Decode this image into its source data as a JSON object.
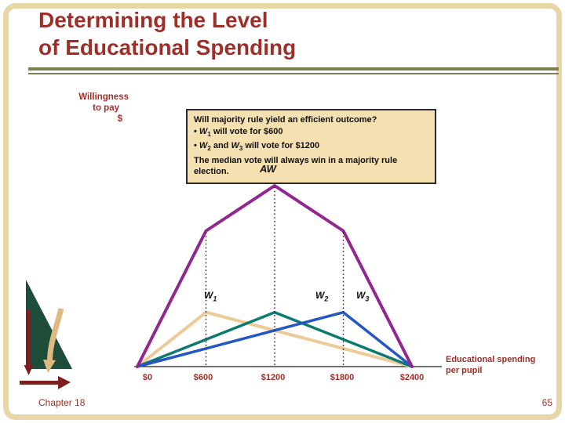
{
  "slide": {
    "title_line1": "Determining the Level",
    "title_line2": "of Educational Spending",
    "footer_left": "Chapter 18",
    "slide_number": "65"
  },
  "ylabel": {
    "line1": "Willingness",
    "line2": "to pay",
    "line3": "$"
  },
  "callout": {
    "title": "Will majority rule yield an efficient outcome?",
    "b1": {
      "pre": "• ",
      "v1": "W",
      "s1": "1",
      "rest": " will vote for $600"
    },
    "b2": {
      "pre": "• ",
      "v1": "W",
      "s1": "2",
      "mid": " and ",
      "v2": "W",
      "s2": "3",
      "rest": " will vote for $1200"
    },
    "footer": "The median vote will always win in a majority rule election."
  },
  "chart_data": {
    "type": "line",
    "title": "",
    "xlabel_line1": "Educational spending",
    "xlabel_line2": "per pupil",
    "ylabel": "Willingness to pay $",
    "x_ticks": [
      "$0",
      "$600",
      "$1200",
      "$1800",
      "$2400"
    ],
    "x_tick_values": [
      0,
      600,
      1200,
      1800,
      2400
    ],
    "x_range": [
      0,
      2400
    ],
    "y_range_relative": [
      0,
      1
    ],
    "grid": false,
    "legend": "inline-labels",
    "series": [
      {
        "name": "W1",
        "color": "#edcb96",
        "width": 4,
        "points": [
          [
            0,
            0
          ],
          [
            600,
            0.3
          ],
          [
            2400,
            0
          ]
        ]
      },
      {
        "name": "W2",
        "color": "#0c7a70",
        "width": 3.5,
        "points": [
          [
            0,
            0
          ],
          [
            1200,
            0.3
          ],
          [
            2400,
            0
          ]
        ]
      },
      {
        "name": "W3",
        "color": "#2456c4",
        "width": 3.5,
        "points": [
          [
            0,
            0
          ],
          [
            1800,
            0.3
          ],
          [
            2400,
            0
          ]
        ]
      },
      {
        "name": "AW",
        "color": "#92278f",
        "width": 4,
        "points": [
          [
            0,
            0
          ],
          [
            600,
            0.75
          ],
          [
            1200,
            1
          ],
          [
            1800,
            0.75
          ],
          [
            2400,
            0
          ]
        ]
      }
    ],
    "dotted_guides": [
      {
        "x": 600,
        "h": 0.75
      },
      {
        "x": 1200,
        "h": 1.0
      },
      {
        "x": 1800,
        "h": 0.75
      }
    ],
    "labels": {
      "aw": "AW",
      "w1": {
        "base": "W",
        "sub": "1"
      },
      "w2": {
        "base": "W",
        "sub": "2"
      },
      "w3": {
        "base": "W",
        "sub": "3"
      }
    }
  },
  "theme": {
    "title_color": "#9e2f28",
    "frame_color": "#e8d6a6",
    "callout_bg": "#f4e0b0",
    "separator_color": "#7c7f52",
    "decoration_green": "#1e4d3a",
    "decoration_maroon": "#7e1f1f",
    "decoration_tan": "#dcba82"
  }
}
